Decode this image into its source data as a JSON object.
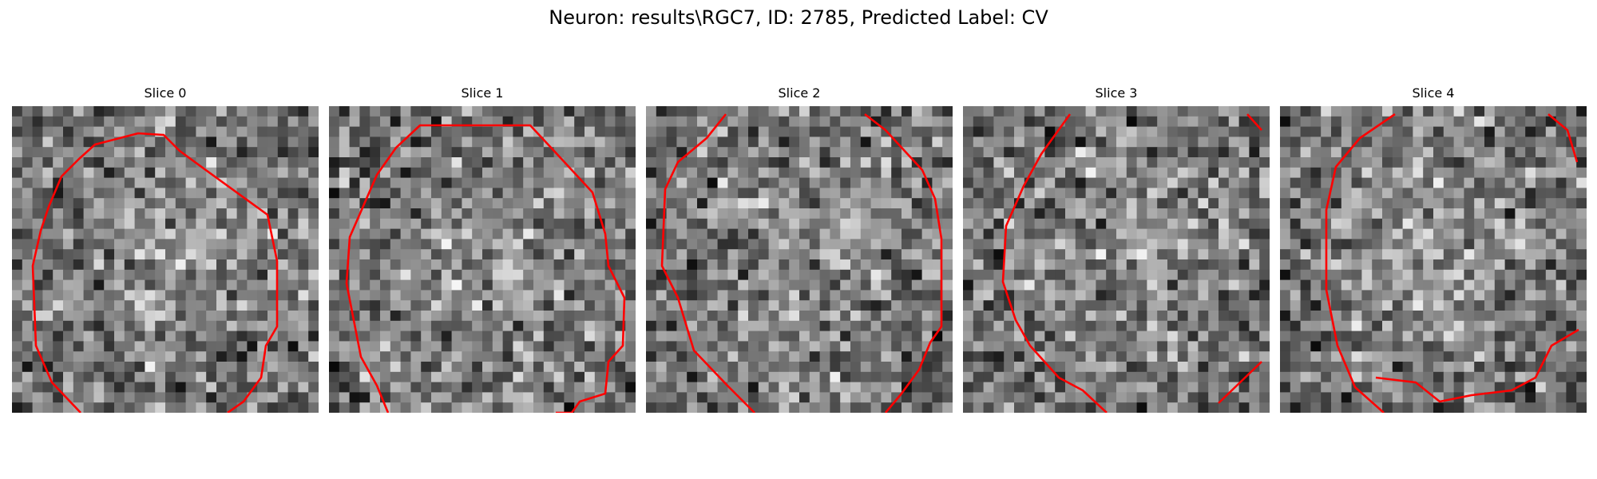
{
  "figure": {
    "title": "Neuron: results\\RGC7, ID: 2785, Predicted Label: CV"
  },
  "contour_color": "#ff0000",
  "panels": [
    {
      "title": "Slice 0"
    },
    {
      "title": "Slice 1"
    },
    {
      "title": "Slice 2"
    },
    {
      "title": "Slice 3"
    },
    {
      "title": "Slice 4"
    }
  ]
}
